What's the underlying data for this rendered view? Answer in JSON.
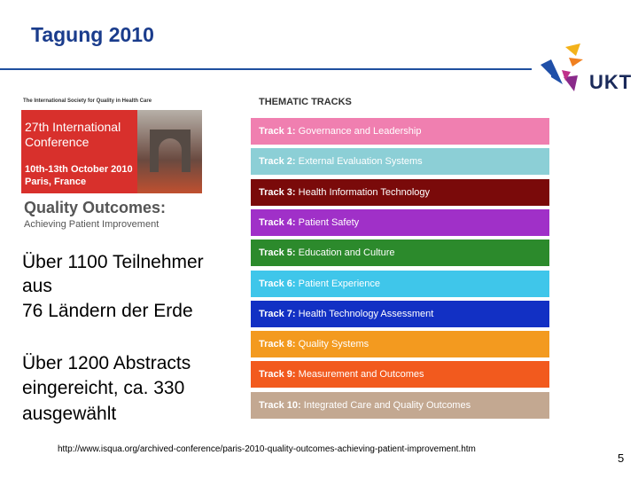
{
  "header": {
    "title": "Tagung 2010"
  },
  "poster": {
    "org": "The International Society for Quality in Health Care",
    "line1": "27th International",
    "line2": "Conference",
    "dates": "10th-13th October 2010",
    "place": "Paris, France",
    "headline": "Quality Outcomes:",
    "tagline": "Achieving Patient Improvement"
  },
  "text": {
    "lines1": [
      "Über 1100 Teilnehmer",
      "aus",
      "76 Ländern der Erde"
    ],
    "lines2": [
      "Über 1200 Abstracts",
      "eingereicht, ca. 330",
      "ausgewählt"
    ]
  },
  "tracks": {
    "title": "THEMATIC TRACKS",
    "items": [
      {
        "number": "Track 1:",
        "name": "Governance and Leadership",
        "color": "#f07fb0"
      },
      {
        "number": "Track 2:",
        "name": "External Evaluation Systems",
        "color": "#8ccfd6"
      },
      {
        "number": "Track 3:",
        "name": "Health Information Technology",
        "color": "#7a0a0a"
      },
      {
        "number": "Track 4:",
        "name": "Patient Safety",
        "color": "#a030c8"
      },
      {
        "number": "Track 5:",
        "name": "Education and Culture",
        "color": "#2c8a2c"
      },
      {
        "number": "Track 6:",
        "name": "Patient Experience",
        "color": "#3fc6ea"
      },
      {
        "number": "Track 7:",
        "name": "Health Technology Assessment",
        "color": "#1230c4"
      },
      {
        "number": "Track 8:",
        "name": "Quality Systems",
        "color": "#f39a1f"
      },
      {
        "number": "Track 9:",
        "name": "Measurement and Outcomes",
        "color": "#f25a1e"
      },
      {
        "number": "Track 10:",
        "name": "Integrated Care and Quality Outcomes",
        "color": "#c3a891"
      }
    ]
  },
  "footer": {
    "url": "http://www.isqua.org/archived-conference/paris-2010-quality-outcomes-achieving-patient-improvement.htm",
    "page": "5"
  },
  "logo": {
    "text": "UKT"
  }
}
